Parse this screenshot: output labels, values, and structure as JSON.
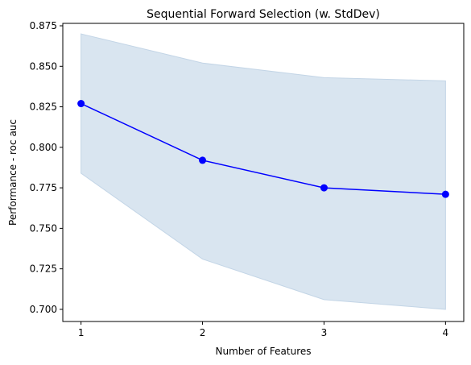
{
  "chart_data": {
    "type": "line",
    "title": "Sequential Forward Selection (w. StdDev)",
    "xlabel": "Number of Features",
    "ylabel": "Performance - roc auc",
    "x": [
      1,
      2,
      3,
      4
    ],
    "x_tick_labels": [
      "1",
      "2",
      "3",
      "4"
    ],
    "xlim": [
      0.85,
      4.15
    ],
    "ylim": [
      0.6925,
      0.8765
    ],
    "y_ticks": [
      0.7,
      0.725,
      0.75,
      0.775,
      0.8,
      0.825,
      0.85,
      0.875
    ],
    "y_tick_labels": [
      "0.700",
      "0.725",
      "0.750",
      "0.775",
      "0.800",
      "0.825",
      "0.850",
      "0.875"
    ],
    "grid": false,
    "series": [
      {
        "values": [
          0.827,
          0.792,
          0.775,
          0.771
        ],
        "lower": [
          0.784,
          0.731,
          0.706,
          0.7
        ],
        "upper": [
          0.87,
          0.852,
          0.843,
          0.841
        ]
      }
    ],
    "colors": {
      "line": "#0000ff",
      "band_fill": "#d9e5f0",
      "band_edge": "#c3d5e6",
      "axes": "#000000"
    }
  }
}
